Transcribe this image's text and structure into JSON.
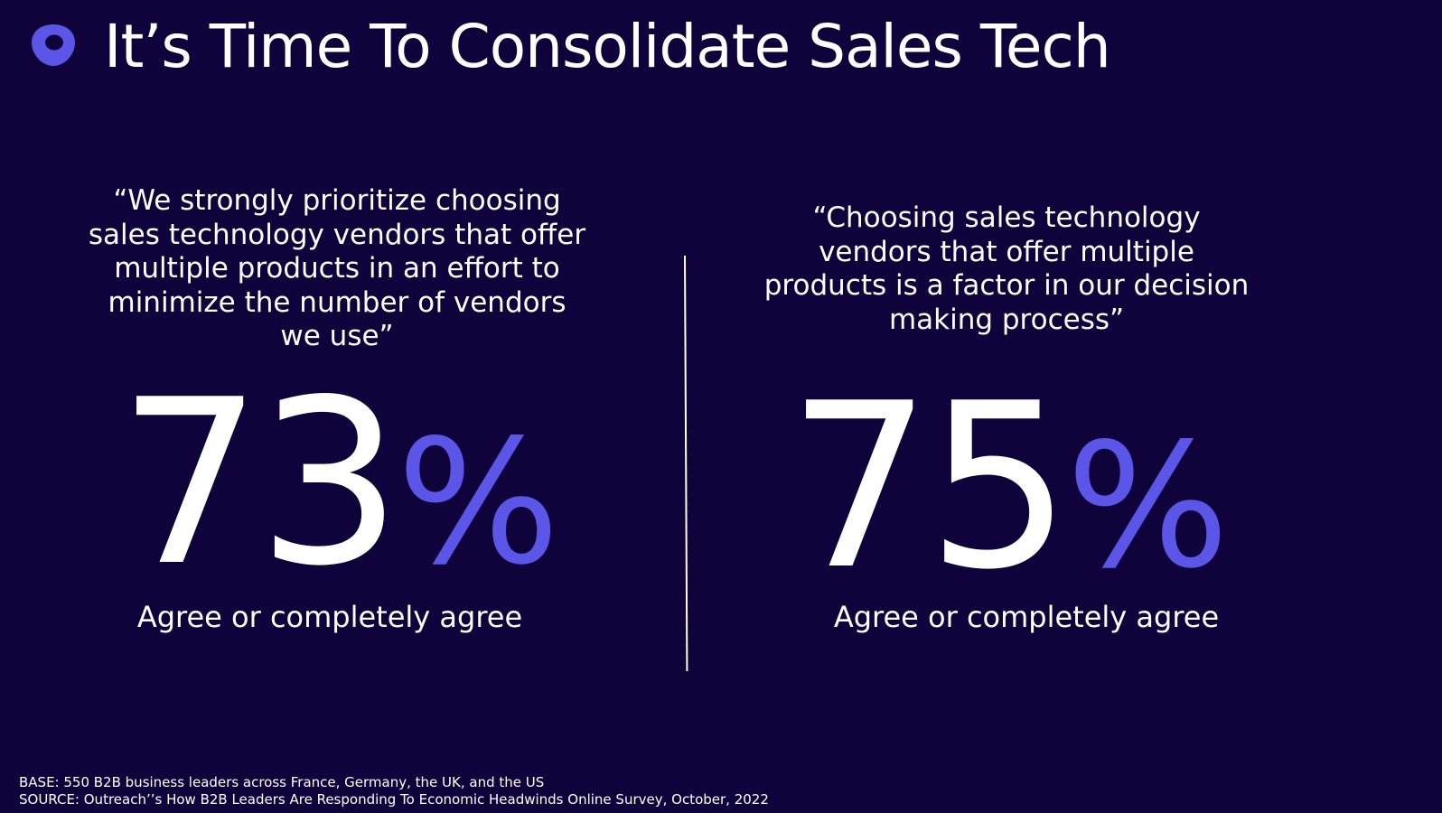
{
  "header": {
    "title": "It’s Time To Consolidate Sales Tech",
    "logo_icon": "outreach-logo-icon"
  },
  "left": {
    "quote": "“We strongly prioritize choosing sales technology vendors that offer multiple products in an effort to minimize the number of vendors we use”",
    "value": "73",
    "percent_sign": "%",
    "caption": "Agree or completely agree"
  },
  "right": {
    "quote": "“Choosing sales technology vendors that offer multiple products is a factor in our decision making process”",
    "value": "75",
    "percent_sign": "%",
    "caption": "Agree or completely agree"
  },
  "footer": {
    "base": "BASE: 550 B2B business leaders across France, Germany, the UK, and the US",
    "source": "SOURCE: Outreach’’s How B2B Leaders Are Responding To Economic Headwinds Online Survey, October, 2022"
  },
  "colors": {
    "background": "#10033c",
    "accent": "#5b55e8",
    "text": "#ffffff"
  }
}
